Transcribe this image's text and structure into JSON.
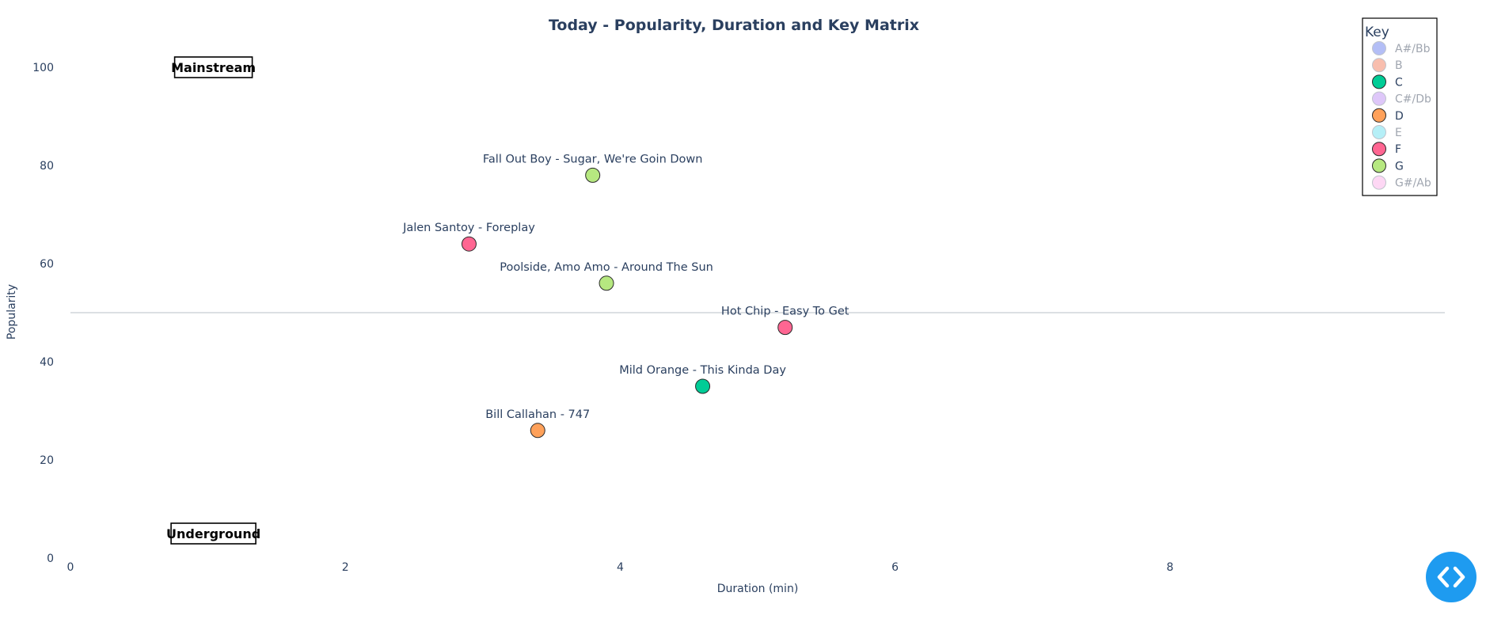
{
  "chart_data": {
    "type": "scatter",
    "title": "Today - Popularity, Duration and Key Matrix",
    "xlabel": "Duration (min)",
    "ylabel": "Popularity",
    "xlim": [
      0,
      10
    ],
    "ylim": [
      0,
      100
    ],
    "xticks": [
      0,
      2,
      4,
      6,
      8
    ],
    "yticks": [
      0,
      20,
      40,
      60,
      80,
      100
    ],
    "reference_line": {
      "y": 50
    },
    "legend": {
      "title": "Key",
      "placement": "top-right",
      "items": [
        {
          "name": "A#/Bb",
          "color": "#a6b3f5",
          "active": false
        },
        {
          "name": "B",
          "color": "#f7b3a0",
          "active": false
        },
        {
          "name": "C",
          "color": "#00cc96",
          "active": true
        },
        {
          "name": "C#/Db",
          "color": "#d8bdf8",
          "active": false
        },
        {
          "name": "D",
          "color": "#ffa15a",
          "active": true
        },
        {
          "name": "E",
          "color": "#a8ecf6",
          "active": false
        },
        {
          "name": "F",
          "color": "#ff6692",
          "active": true
        },
        {
          "name": "G",
          "color": "#b6e880",
          "active": true
        },
        {
          "name": "G#/Ab",
          "color": "#fdd0f2",
          "active": false
        }
      ]
    },
    "points": [
      {
        "label": "Fall Out Boy - Sugar, We're Goin Down",
        "x": 3.8,
        "y": 78,
        "key": "G"
      },
      {
        "label": "Jalen Santoy - Foreplay",
        "x": 2.9,
        "y": 64,
        "key": "F"
      },
      {
        "label": "Poolside, Amo Amo - Around The Sun",
        "x": 3.9,
        "y": 56,
        "key": "G"
      },
      {
        "label": "Hot Chip - Easy To Get",
        "x": 5.2,
        "y": 47,
        "key": "F"
      },
      {
        "label": "Mild Orange - This Kinda Day",
        "x": 4.6,
        "y": 35,
        "key": "C"
      },
      {
        "label": "Bill Callahan - 747",
        "x": 3.4,
        "y": 26,
        "key": "D"
      }
    ],
    "annotations": [
      {
        "text": "Mainstream",
        "x": 1.0,
        "y": 100
      },
      {
        "text": "Underground",
        "x": 1.0,
        "y": 5
      }
    ]
  },
  "colors": {
    "C": "#00cc96",
    "D": "#ffa15a",
    "F": "#ff6692",
    "G": "#b6e880",
    "text": "#2a3f5f",
    "inactive_text": "#a0a6b0",
    "button": "#1e9bf0"
  },
  "ui": {
    "code_button_icon": "code-brackets-icon"
  }
}
